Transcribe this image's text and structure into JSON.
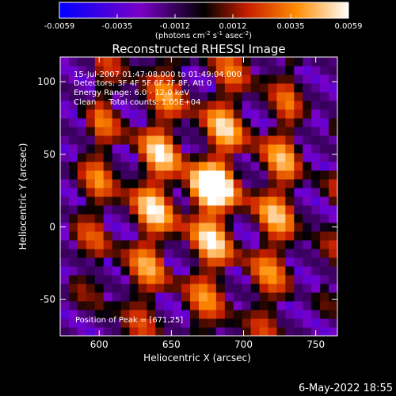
{
  "colorbar": {
    "ticks": [
      "-0.0059",
      "-0.0035",
      "-0.0012",
      "0.0012",
      "0.0035",
      "0.0059"
    ],
    "units": "(photons cm",
    "units_exp1": "-2",
    "units_mid": " s",
    "units_exp2": "-1",
    "units_mid2": " asec",
    "units_exp3": "-2",
    "units_end": ")",
    "range": [
      -0.0059,
      0.0059
    ],
    "colors": [
      "#0000ff",
      "#7a00c8",
      "#000000",
      "#c81e00",
      "#ff8c00",
      "#ffffff"
    ]
  },
  "chart_data": {
    "type": "heatmap",
    "title": "Reconstructed RHESSI Image",
    "xlabel": "Heliocentric X (arcsec)",
    "ylabel": "Heliocentric Y (arcsec)",
    "xlim": [
      573,
      765
    ],
    "ylim": [
      -75,
      117
    ],
    "xticks": [
      "600",
      "650",
      "700",
      "750"
    ],
    "yticks": [
      "100",
      "50",
      "0",
      "-50"
    ],
    "peak": [
      671,
      25
    ],
    "annotations": [
      "15-Jul-2007 01:47:08.000 to 01:49:04.000",
      "Detectors: 3F 4F 5F 6F 7F 8F, Att 0",
      "Energy Range: 6.0 - 12.0 keV",
      "Clean     Total counts: 1.05E+04",
      "Position of Peak = [671,25]"
    ]
  },
  "footer": {
    "date": "6-May-2022 18:55"
  }
}
